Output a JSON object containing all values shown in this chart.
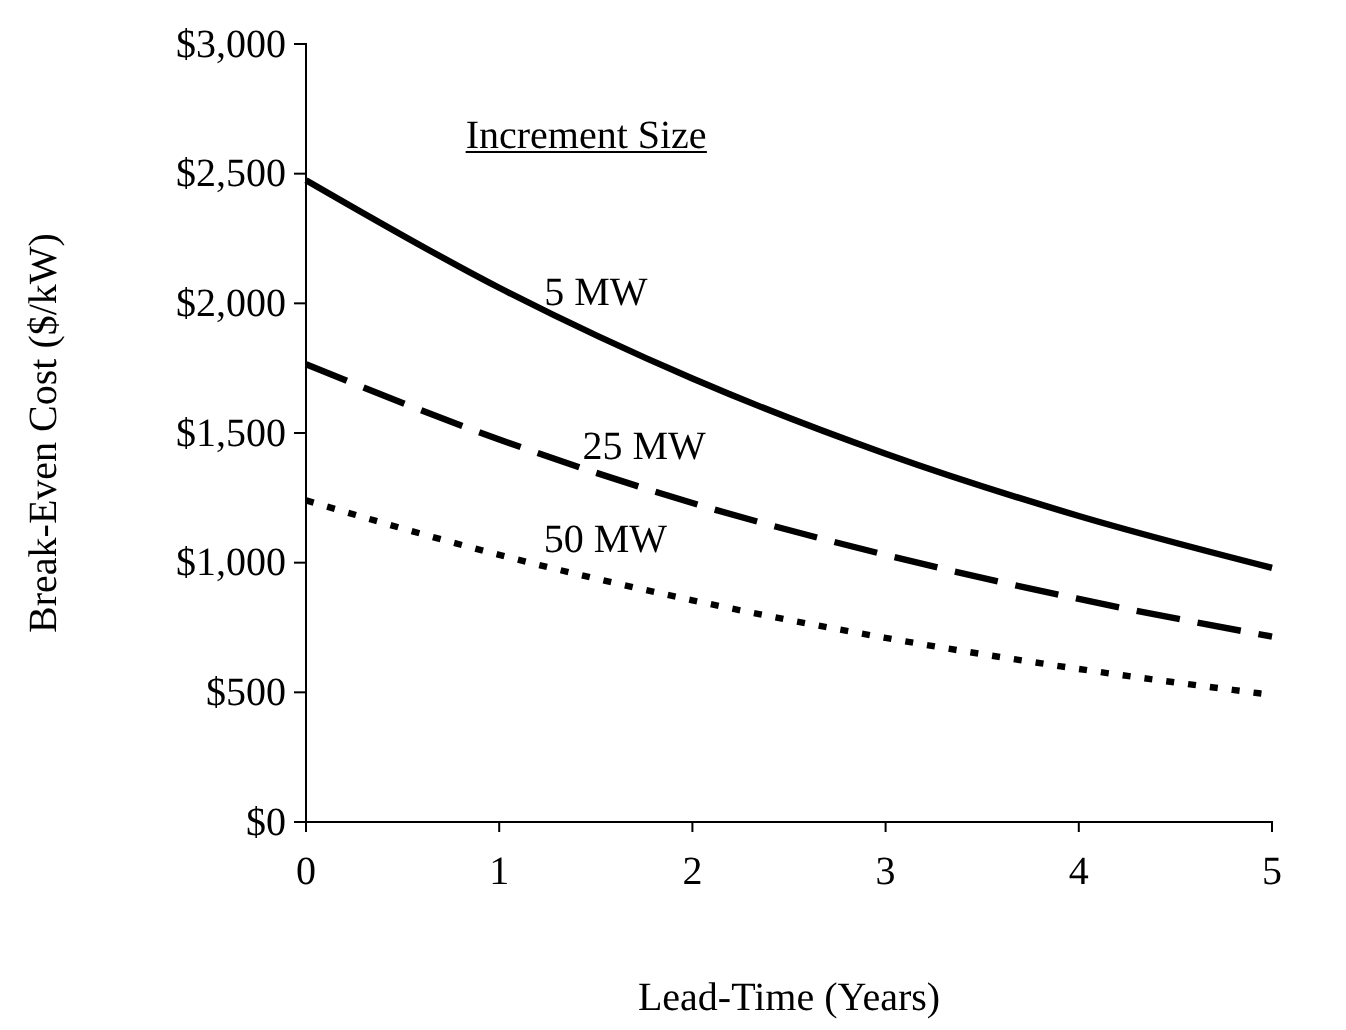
{
  "chart_data": {
    "type": "line",
    "xlabel": "Lead-Time (Years)",
    "ylabel": "Break-Even Cost ($/kW)",
    "legend_title": "Increment Size",
    "x": [
      0,
      1,
      2,
      3,
      4,
      5
    ],
    "series": [
      {
        "name": "5 MW",
        "color": "#000000",
        "line_style": "solid",
        "values": [
          2475,
          2060,
          1710,
          1420,
          1180,
          980
        ]
      },
      {
        "name": "25 MW",
        "color": "#000000",
        "line_style": "dashed",
        "values": [
          1765,
          1475,
          1230,
          1030,
          860,
          715
        ]
      },
      {
        "name": "50 MW",
        "color": "#000000",
        "line_style": "dotted",
        "values": [
          1240,
          1030,
          855,
          710,
          590,
          490
        ]
      }
    ],
    "xlim": [
      0,
      5
    ],
    "xticks": [
      0,
      1,
      2,
      3,
      4,
      5
    ],
    "ylim": [
      0,
      3000
    ],
    "yticks": [
      {
        "value": 0,
        "label": "$0"
      },
      {
        "value": 500,
        "label": "$500"
      },
      {
        "value": 1000,
        "label": "$1,000"
      },
      {
        "value": 1500,
        "label": "$1,500"
      },
      {
        "value": 2000,
        "label": "$2,000"
      },
      {
        "value": 2500,
        "label": "$2,500"
      },
      {
        "value": 3000,
        "label": "$3,000"
      }
    ],
    "marker": "none",
    "grid": false
  }
}
